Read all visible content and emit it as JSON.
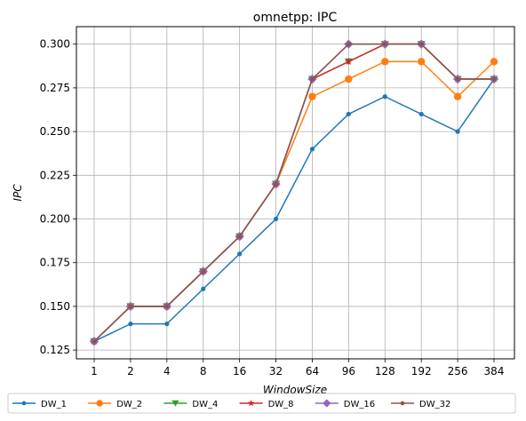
{
  "chart_data": {
    "type": "line",
    "title": "omnetpp: IPC",
    "xlabel": "WindowSize",
    "ylabel": "IPC",
    "categories": [
      "1",
      "2",
      "4",
      "8",
      "16",
      "32",
      "64",
      "96",
      "128",
      "192",
      "256",
      "384"
    ],
    "yticks": [
      "0.125",
      "0.150",
      "0.175",
      "0.200",
      "0.225",
      "0.250",
      "0.275",
      "0.300"
    ],
    "ylim": [
      0.12,
      0.31
    ],
    "grid": true,
    "legend_position": "bottom",
    "series": [
      {
        "name": "DW_1",
        "color": "#1f77b4",
        "marker": "dot",
        "values": [
          0.13,
          0.14,
          0.14,
          0.16,
          0.18,
          0.2,
          0.24,
          0.26,
          0.27,
          0.26,
          0.25,
          0.28
        ]
      },
      {
        "name": "DW_2",
        "color": "#ff7f0e",
        "marker": "circle",
        "values": [
          0.13,
          0.15,
          0.15,
          0.17,
          0.19,
          0.22,
          0.27,
          0.28,
          0.29,
          0.29,
          0.27,
          0.29
        ]
      },
      {
        "name": "DW_4",
        "color": "#2ca02c",
        "marker": "triangle",
        "values": [
          0.13,
          0.15,
          0.15,
          0.17,
          0.19,
          0.22,
          0.28,
          0.29,
          0.3,
          0.3,
          0.28,
          0.28
        ]
      },
      {
        "name": "DW_8",
        "color": "#d62728",
        "marker": "star",
        "values": [
          0.13,
          0.15,
          0.15,
          0.17,
          0.19,
          0.22,
          0.28,
          0.29,
          0.3,
          0.3,
          0.28,
          0.28
        ]
      },
      {
        "name": "DW_16",
        "color": "#9467bd",
        "marker": "diamond",
        "values": [
          0.13,
          0.15,
          0.15,
          0.17,
          0.19,
          0.22,
          0.28,
          0.3,
          0.3,
          0.3,
          0.28,
          0.28
        ]
      },
      {
        "name": "DW_32",
        "color": "#8c564b",
        "marker": "dot",
        "values": [
          0.13,
          0.15,
          0.15,
          0.17,
          0.19,
          0.22,
          0.28,
          0.3,
          0.3,
          0.3,
          0.28,
          0.28
        ]
      }
    ]
  }
}
